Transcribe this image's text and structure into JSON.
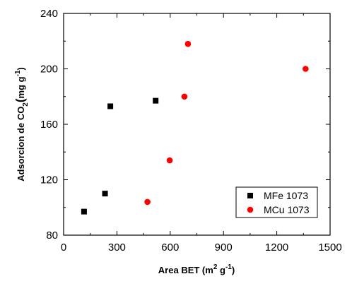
{
  "chart_data": {
    "type": "scatter",
    "xlabel": "Area BET (m2 g-1)",
    "ylabel": "Adsorcion de CO2(mg g-1)",
    "xlim": [
      0,
      1500
    ],
    "ylim": [
      80,
      240
    ],
    "xticks": [
      0,
      300,
      600,
      900,
      1200,
      1500
    ],
    "yticks": [
      80,
      120,
      160,
      200,
      240
    ],
    "grid": false,
    "legend_position": "bottom-right",
    "series": [
      {
        "name": "MFe 1073",
        "marker": "square",
        "color": "#000000",
        "points": [
          {
            "x": 115,
            "y": 97
          },
          {
            "x": 233,
            "y": 110
          },
          {
            "x": 263,
            "y": 173
          },
          {
            "x": 518,
            "y": 177
          }
        ]
      },
      {
        "name": "MCu 1073",
        "marker": "circle",
        "color": "#ff0000",
        "points": [
          {
            "x": 472,
            "y": 104
          },
          {
            "x": 597,
            "y": 134
          },
          {
            "x": 680,
            "y": 180
          },
          {
            "x": 700,
            "y": 218
          },
          {
            "x": 1362,
            "y": 200
          }
        ]
      }
    ]
  },
  "axis_text": {
    "x_title_main": "Area BET (m",
    "x_title_sup": "2",
    "x_title_mid": " g",
    "x_title_sup2": "-1",
    "x_title_end": ")",
    "y_title_main": "Adsorcion de CO",
    "y_title_sub": "2",
    "y_title_paren": "(",
    "y_title_unit": "mg g",
    "y_title_sup": "-1",
    "y_title_end": ")"
  }
}
